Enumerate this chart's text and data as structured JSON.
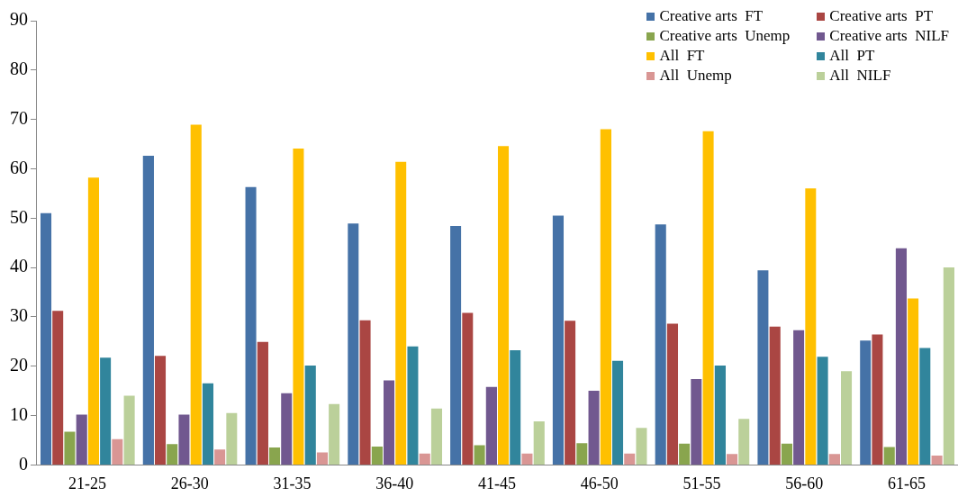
{
  "chart_data": {
    "type": "bar",
    "categories": [
      "21-25",
      "26-30",
      "31-35",
      "36-40",
      "41-45",
      "46-50",
      "51-55",
      "56-60",
      "61-65"
    ],
    "series": [
      {
        "name": "Creative arts  FT",
        "color": "#4572a7",
        "values": [
          51.2,
          62.8,
          56.5,
          49.1,
          48.6,
          50.7,
          48.9,
          39.6,
          25.4
        ]
      },
      {
        "name": "Creative arts  PT",
        "color": "#aa4643",
        "values": [
          31.4,
          22.3,
          25.1,
          29.5,
          31.0,
          29.4,
          28.8,
          28.2,
          26.6
        ]
      },
      {
        "name": "Creative arts  Unemp",
        "color": "#89a54e",
        "values": [
          6.9,
          4.4,
          3.7,
          3.9,
          4.2,
          4.6,
          4.5,
          4.5,
          3.8
        ]
      },
      {
        "name": "Creative arts  NILF",
        "color": "#71588f",
        "values": [
          10.4,
          10.4,
          14.7,
          17.3,
          16.0,
          15.2,
          17.6,
          27.5,
          44.1
        ]
      },
      {
        "name": "All  FT",
        "color": "#ffc000",
        "values": [
          58.4,
          69.1,
          64.3,
          61.6,
          64.8,
          68.2,
          67.8,
          56.2,
          33.9
        ]
      },
      {
        "name": "All  PT",
        "color": "#31859c",
        "values": [
          21.9,
          16.7,
          20.3,
          24.2,
          23.4,
          21.3,
          20.3,
          22.1,
          23.9
        ]
      },
      {
        "name": "All  Unemp",
        "color": "#d99694",
        "values": [
          5.4,
          3.3,
          2.7,
          2.5,
          2.5,
          2.5,
          2.4,
          2.4,
          2.1
        ]
      },
      {
        "name": "All  NILF",
        "color": "#bbd09a",
        "values": [
          14.2,
          10.7,
          12.5,
          11.6,
          9.0,
          7.7,
          9.5,
          19.2,
          40.2
        ]
      }
    ],
    "ylim": [
      0,
      90
    ],
    "yticks": [
      0,
      10,
      20,
      30,
      40,
      50,
      60,
      70,
      80,
      90
    ],
    "grid": false,
    "legend": "top right"
  }
}
